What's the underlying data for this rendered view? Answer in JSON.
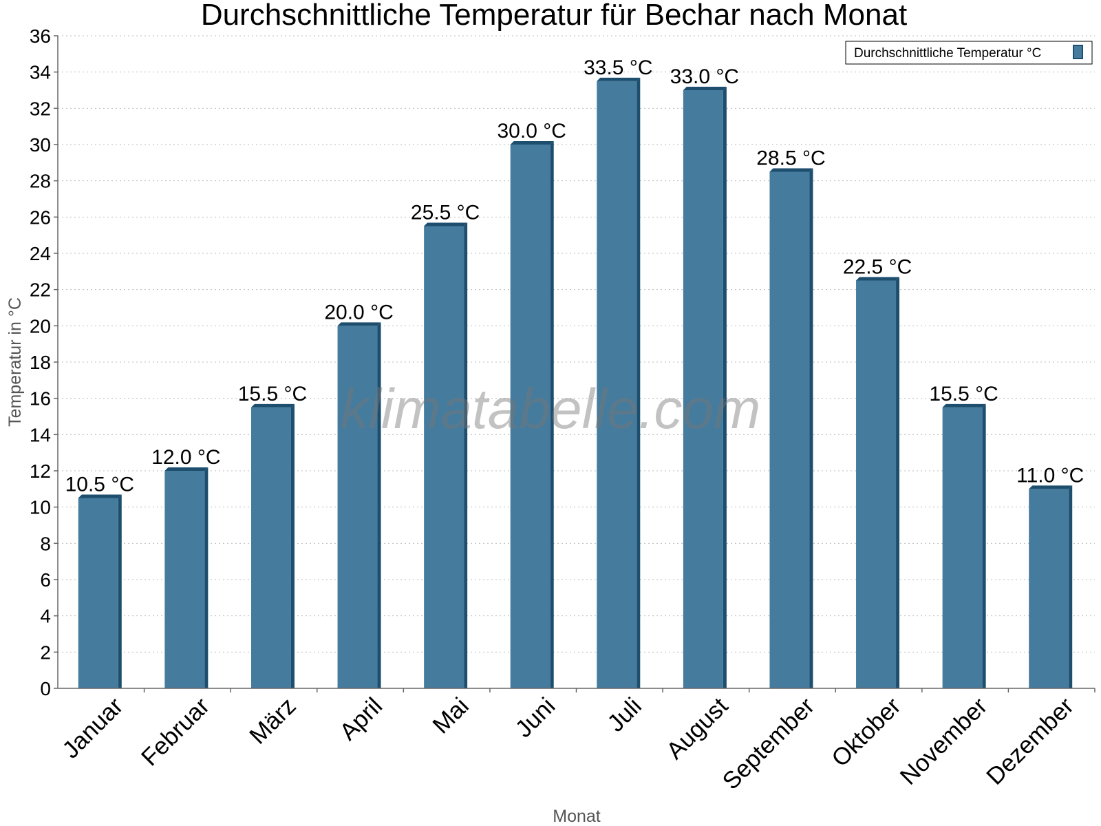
{
  "watermark": "klimatabelle.com",
  "chart_data": {
    "type": "bar",
    "title": "Durchschnittliche Temperatur für Bechar nach Monat",
    "xlabel": "Monat",
    "ylabel": "Temperatur in °C",
    "ylim": [
      0,
      36
    ],
    "ytick_step": 2,
    "grid": true,
    "legend_position": "top-right",
    "categories": [
      "Januar",
      "Februar",
      "März",
      "April",
      "Mai",
      "Juni",
      "Juli",
      "August",
      "September",
      "Oktober",
      "November",
      "Dezember"
    ],
    "series": [
      {
        "name": "Durchschnittliche Temperatur °C",
        "values": [
          10.5,
          12.0,
          15.5,
          20.0,
          25.5,
          30.0,
          33.5,
          33.0,
          28.5,
          22.5,
          15.5,
          11.0
        ],
        "labels": [
          "10.5 °C",
          "12.0 °C",
          "15.5 °C",
          "20.0 °C",
          "25.5 °C",
          "30.0 °C",
          "33.5 °C",
          "33.0 °C",
          "28.5 °C",
          "22.5 °C",
          "15.5 °C",
          "11.0 °C"
        ],
        "color": "#457b9d",
        "side_color": "#1d4e6e"
      }
    ]
  }
}
